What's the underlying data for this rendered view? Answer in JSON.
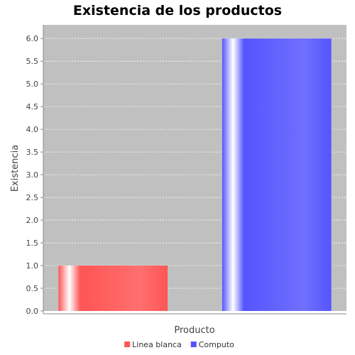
{
  "chart_data": {
    "type": "bar",
    "title": "Existencia de los productos",
    "xlabel": "Producto",
    "ylabel": "Existencia",
    "categories": [
      ""
    ],
    "series": [
      {
        "name": "Linea blanca",
        "values": [
          1.0
        ],
        "color": "#ff5555"
      },
      {
        "name": "Computo",
        "values": [
          6.0
        ],
        "color": "#5555ff"
      }
    ],
    "ylim": [
      0,
      6.3
    ],
    "yticks": [
      "0.0",
      "0.5",
      "1.0",
      "1.5",
      "2.0",
      "2.5",
      "3.0",
      "3.5",
      "4.0",
      "4.5",
      "5.0",
      "5.5",
      "6.0"
    ],
    "grid": true,
    "legend_position": "bottom",
    "plot_background": "#c0c0c0"
  }
}
